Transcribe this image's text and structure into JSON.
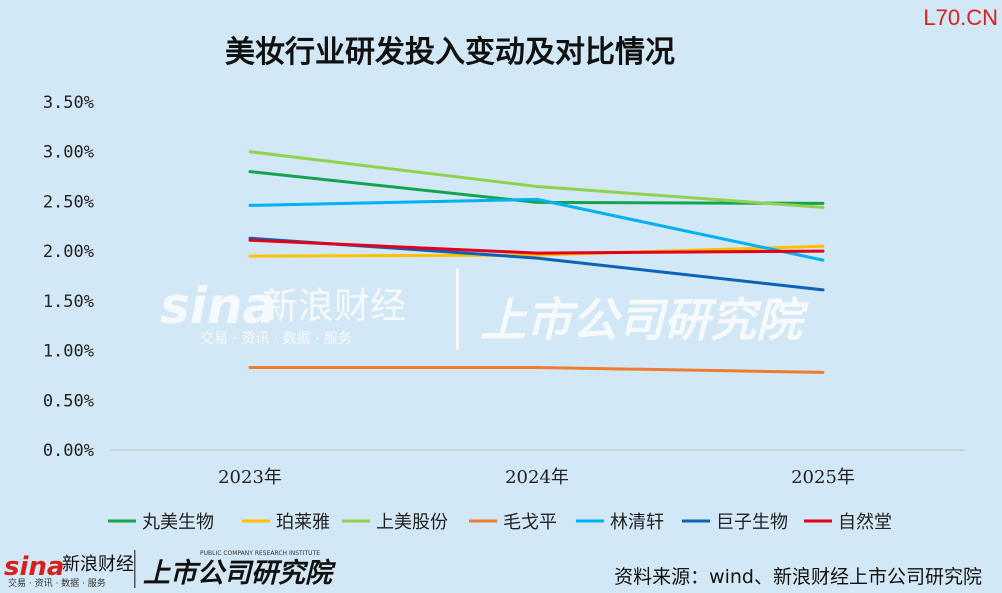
{
  "corner_mark": "L70.CN",
  "source_text": "资料来源：wind、新浪财经上市公司研究院",
  "watermark": {
    "brand_latin": "sina",
    "brand_cn": "新浪财经",
    "brand_sub": "交易 · 资讯 · 数据 · 服务",
    "institute": "上市公司研究院",
    "institute_en": "PUBLIC COMPANY RESEARCH INSTITUTE"
  },
  "chart_data": {
    "type": "line",
    "title": "美妆行业研发投入变动及对比情况",
    "xlabel": "",
    "ylabel": "",
    "categories": [
      "2023年",
      "2024年",
      "2025年"
    ],
    "ylim": [
      0,
      0.035
    ],
    "yticks": [
      "0.00%",
      "0.50%",
      "1.00%",
      "1.50%",
      "2.00%",
      "2.50%",
      "3.00%",
      "3.50%"
    ],
    "grid": false,
    "legend_position": "bottom",
    "series": [
      {
        "name": "丸美生物",
        "color": "#14a44d",
        "values": [
          0.028,
          0.0249,
          0.0248
        ]
      },
      {
        "name": "珀莱雅",
        "color": "#ffc000",
        "values": [
          0.0195,
          0.0196,
          0.0205
        ]
      },
      {
        "name": "上美股份",
        "color": "#92d050",
        "values": [
          0.03,
          0.0265,
          0.0244
        ]
      },
      {
        "name": "毛戈平",
        "color": "#ed7d31",
        "values": [
          0.0083,
          0.0083,
          0.0078
        ]
      },
      {
        "name": "林清轩",
        "color": "#00b0f0",
        "values": [
          0.0246,
          0.0252,
          0.0191
        ]
      },
      {
        "name": "巨子生物",
        "color": "#0a63b5",
        "values": [
          0.0213,
          0.0193,
          0.0161
        ]
      },
      {
        "name": "自然堂",
        "color": "#e3001b",
        "values": [
          0.0211,
          0.0198,
          0.02
        ]
      }
    ]
  }
}
